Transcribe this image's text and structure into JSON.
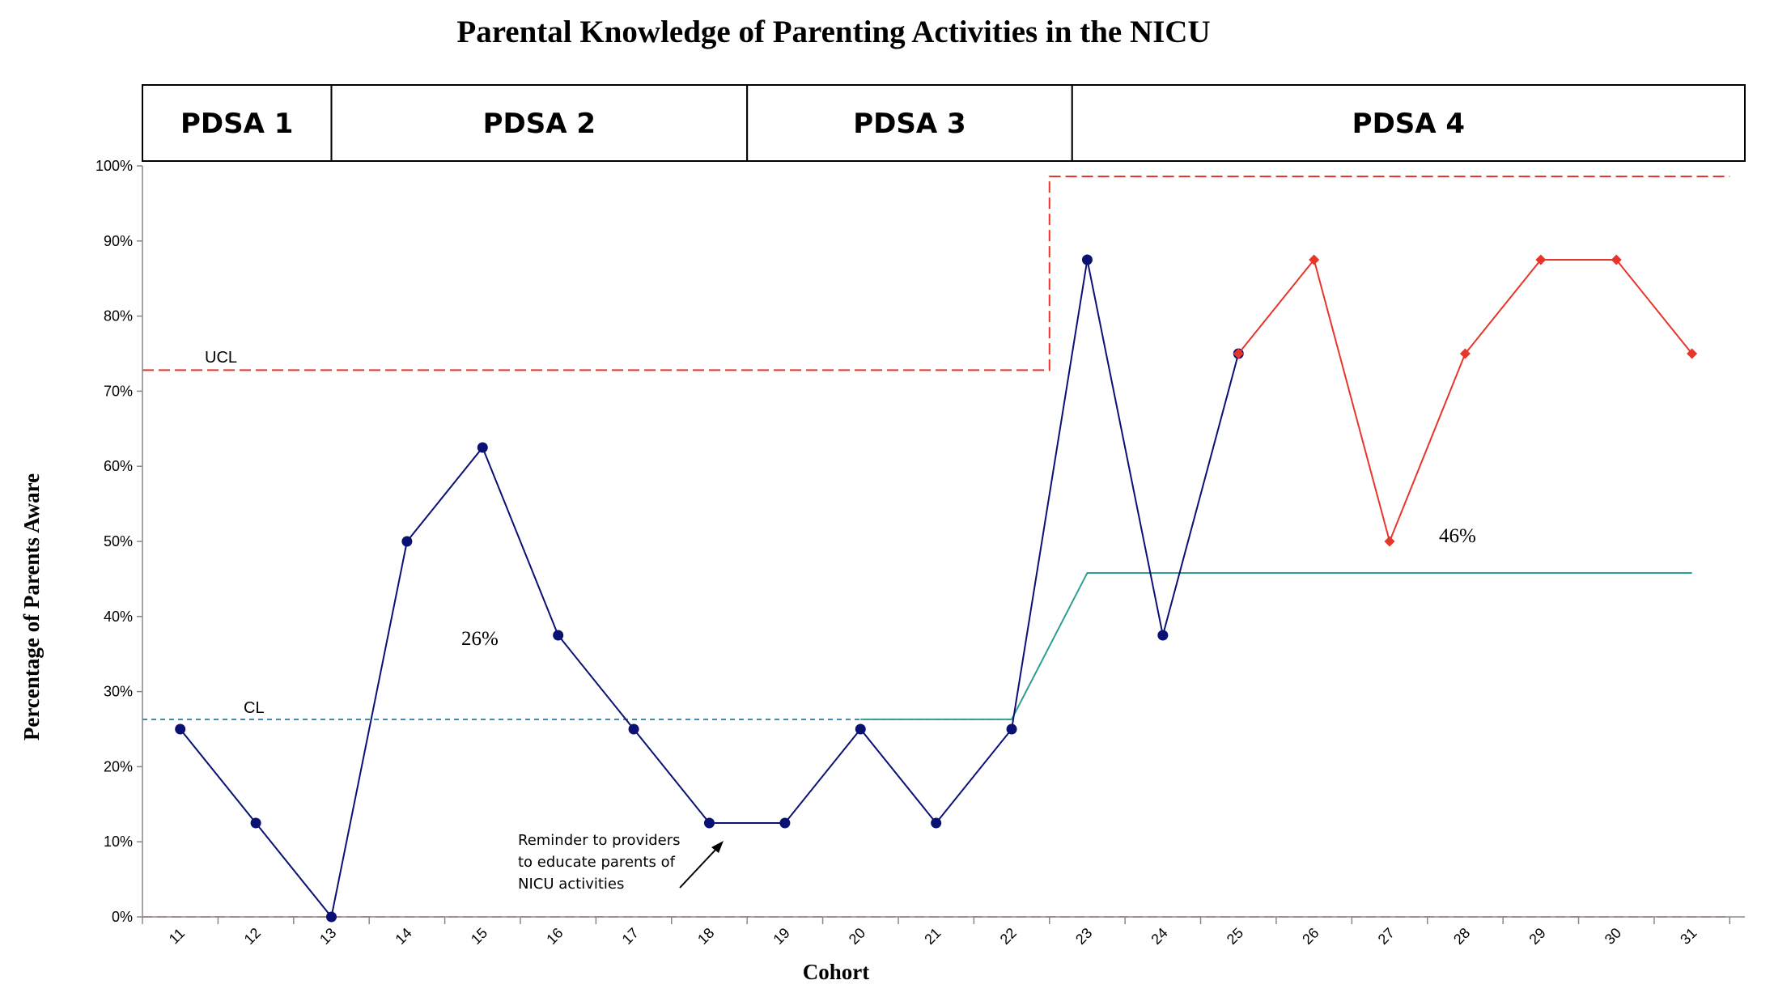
{
  "chart_data": {
    "type": "line",
    "title": "Parental Knowledge of Parenting Activities in the NICU",
    "xlabel": "Cohort",
    "ylabel": "Percentage of  Parents Aware",
    "x": [
      11,
      12,
      13,
      14,
      15,
      16,
      17,
      18,
      19,
      20,
      21,
      22,
      23,
      24,
      25,
      26,
      27,
      28,
      29,
      30,
      31
    ],
    "ylim": [
      0,
      100
    ],
    "yticks": [
      "0%",
      "10%",
      "20%",
      "30%",
      "40%",
      "50%",
      "60%",
      "70%",
      "80%",
      "90%",
      "100%"
    ],
    "grid": false,
    "series": [
      {
        "kind": "data",
        "color": "#0a1172",
        "marker": "circle",
        "points": [
          [
            11,
            25
          ],
          [
            12,
            12.5
          ],
          [
            13,
            0
          ],
          [
            14,
            50
          ],
          [
            15,
            62.5
          ],
          [
            16,
            37.5
          ],
          [
            17,
            25
          ],
          [
            18,
            12.5
          ],
          [
            19,
            12.5
          ],
          [
            20,
            25
          ],
          [
            21,
            12.5
          ],
          [
            22,
            25
          ],
          [
            23,
            87.5
          ],
          [
            24,
            37.5
          ],
          [
            25,
            75
          ]
        ]
      },
      {
        "kind": "data-highlight",
        "color": "#e8352b",
        "marker": "diamond",
        "points": [
          [
            25,
            75
          ],
          [
            26,
            87.5
          ],
          [
            27,
            50
          ],
          [
            28,
            75
          ],
          [
            29,
            87.5
          ],
          [
            30,
            87.5
          ],
          [
            31,
            75
          ]
        ]
      },
      {
        "kind": "ucl",
        "color": "#e8352b",
        "points": [
          [
            10.5,
            72.8
          ],
          [
            22.5,
            72.8
          ],
          [
            22.5,
            98.6
          ],
          [
            31.5,
            98.6
          ]
        ]
      },
      {
        "kind": "cl-baseline",
        "color": "#3a7fa8",
        "points": [
          [
            10.5,
            26.3
          ],
          [
            22,
            26.3
          ]
        ]
      },
      {
        "kind": "cl-shift",
        "color": "#2e9e94",
        "points": [
          [
            20,
            26.3
          ],
          [
            22,
            26.3
          ],
          [
            23,
            45.8
          ],
          [
            31,
            45.8
          ]
        ]
      },
      {
        "kind": "lcl",
        "color": "#e8352b",
        "points": [
          [
            10.5,
            0
          ],
          [
            31.5,
            0
          ]
        ]
      }
    ],
    "phases": [
      {
        "label": "PDSA 1",
        "from": 10.5,
        "to": 13
      },
      {
        "label": "PDSA 2",
        "from": 13,
        "to": 18.5
      },
      {
        "label": "PDSA 3",
        "from": 18.5,
        "to": 22.8
      },
      {
        "label": "PDSA 4",
        "from": 22.8,
        "to": 31.7
      }
    ],
    "annotations": {
      "ucl_label": "UCL",
      "cl_label": "CL",
      "baseline_pct": "26%",
      "shift_pct": "46%",
      "note_lines": [
        "Reminder to providers",
        "to educate parents of",
        "NICU activities"
      ]
    }
  }
}
